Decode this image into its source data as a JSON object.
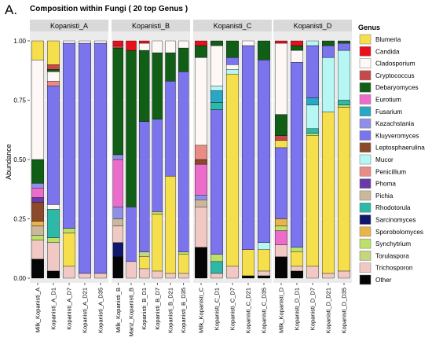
{
  "figure": {
    "panel_letter": "A.",
    "title": "Composition within Fungi ( 20 top Genus )"
  },
  "colors": {
    "Blumeria": "#f5df4d",
    "Candida": "#e8101c",
    "Cladosporium": "#fdf8f5",
    "Cryptococcus": "#c8474b",
    "Debaryomyces": "#115e16",
    "Eurotium": "#ec6ccc",
    "Fusarium": "#2aa6c6",
    "Kazachstania": "#8f8fe8",
    "Kluyveromyces": "#7b74ec",
    "Leptosphaerulina": "#8b4a2b",
    "Mucor": "#b6f7f4",
    "Penicillium": "#ea8c86",
    "Phoma": "#6b3aa9",
    "Pichia": "#c9b89c",
    "Rhodotorula": "#2db8a8",
    "Sarcinomyces": "#10186e",
    "Sporobolomyces": "#e8b54a",
    "Synchytrium": "#bce06a",
    "Torulaspora": "#c5d67e",
    "Trichosporon": "#f1c9c4",
    "Other": "#050505"
  },
  "chart_data": {
    "type": "bar",
    "stacked": true,
    "title": "Composition within Fungi ( 20 top Genus )",
    "xlabel": "",
    "ylabel": "Abundance",
    "ylim": [
      0,
      1
    ],
    "yticks": [
      "0.00",
      "0.25",
      "0.50",
      "0.75",
      "1.00"
    ],
    "grid": true,
    "legend_position": "right",
    "legend_title": "Genus",
    "legend": [
      "Blumeria",
      "Candida",
      "Cladosporium",
      "Cryptococcus",
      "Debaryomyces",
      "Eurotium",
      "Fusarium",
      "Kazachstania",
      "Kluyveromyces",
      "Leptosphaerulina",
      "Mucor",
      "Penicillium",
      "Phoma",
      "Pichia",
      "Rhodotorula",
      "Sarcinomyces",
      "Sporobolomyces",
      "Synchytrium",
      "Torulaspora",
      "Trichosporon",
      "Other"
    ],
    "facets": [
      {
        "name": "Kopanisti_A",
        "samples": [
          {
            "label": "Milk_Kopanisti_A",
            "stack": [
              {
                "genus": "Other",
                "value": 0.08
              },
              {
                "genus": "Trichosporon",
                "value": 0.08
              },
              {
                "genus": "Synchytrium",
                "value": 0.02
              },
              {
                "genus": "Pichia",
                "value": 0.04
              },
              {
                "genus": "Sporobolomyces",
                "value": 0.02
              },
              {
                "genus": "Leptosphaerulina",
                "value": 0.08
              },
              {
                "genus": "Phoma",
                "value": 0.02
              },
              {
                "genus": "Eurotium",
                "value": 0.04
              },
              {
                "genus": "Kazachstania",
                "value": 0.02
              },
              {
                "genus": "Debaryomyces",
                "value": 0.1
              },
              {
                "genus": "Cladosporium",
                "value": 0.42
              },
              {
                "genus": "Blumeria",
                "value": 0.08
              }
            ]
          },
          {
            "label": "Kopanisti_A_D1",
            "stack": [
              {
                "genus": "Other",
                "value": 0.03
              },
              {
                "genus": "Trichosporon",
                "value": 0.12
              },
              {
                "genus": "Synchytrium",
                "value": 0.02
              },
              {
                "genus": "Rhodotorula",
                "value": 0.12
              },
              {
                "genus": "Cladosporium",
                "value": 0.02
              },
              {
                "genus": "Kluyveromyces",
                "value": 0.5
              },
              {
                "genus": "Penicillium",
                "value": 0.02
              },
              {
                "genus": "Cladosporium",
                "value": 0.04
              },
              {
                "genus": "Debaryomyces",
                "value": 0.01
              },
              {
                "genus": "Cryptococcus",
                "value": 0.02
              },
              {
                "genus": "Blumeria",
                "value": 0.1
              }
            ]
          },
          {
            "label": "Kopanisti_A_D7",
            "stack": [
              {
                "genus": "Trichosporon",
                "value": 0.05
              },
              {
                "genus": "Blumeria",
                "value": 0.14
              },
              {
                "genus": "Synchytrium",
                "value": 0.02
              },
              {
                "genus": "Kluyveromyces",
                "value": 0.78
              },
              {
                "genus": "Cladosporium",
                "value": 0.01
              }
            ]
          },
          {
            "label": "Kopanisti_A_D21",
            "stack": [
              {
                "genus": "Trichosporon",
                "value": 0.02
              },
              {
                "genus": "Kluyveromyces",
                "value": 0.97
              },
              {
                "genus": "Cladosporium",
                "value": 0.01
              }
            ]
          },
          {
            "label": "Kopanisti_A_D35",
            "stack": [
              {
                "genus": "Trichosporon",
                "value": 0.02
              },
              {
                "genus": "Kluyveromyces",
                "value": 0.97
              },
              {
                "genus": "Cladosporium",
                "value": 0.01
              }
            ]
          }
        ]
      },
      {
        "name": "Kopanisti_B",
        "samples": [
          {
            "label": "Milk_Kopanisti_B",
            "stack": [
              {
                "genus": "Other",
                "value": 0.09
              },
              {
                "genus": "Sarcinomyces",
                "value": 0.06
              },
              {
                "genus": "Trichosporon",
                "value": 0.07
              },
              {
                "genus": "Pichia",
                "value": 0.03
              },
              {
                "genus": "Kazachstania",
                "value": 0.05
              },
              {
                "genus": "Eurotium",
                "value": 0.2
              },
              {
                "genus": "Kazachstania",
                "value": 0.02
              },
              {
                "genus": "Debaryomyces",
                "value": 0.45
              },
              {
                "genus": "Cryptococcus",
                "value": 0.01
              },
              {
                "genus": "Candida",
                "value": 0.02
              }
            ]
          },
          {
            "label": "Manz_Kopanisti_B",
            "stack": [
              {
                "genus": "Trichosporon",
                "value": 0.07
              },
              {
                "genus": "Kluyveromyces",
                "value": 0.23
              },
              {
                "genus": "Debaryomyces",
                "value": 0.66
              },
              {
                "genus": "Candida",
                "value": 0.04
              }
            ]
          },
          {
            "label": "Kopanisti_B_D1",
            "stack": [
              {
                "genus": "Trichosporon",
                "value": 0.04
              },
              {
                "genus": "Blumeria",
                "value": 0.05
              },
              {
                "genus": "Torulaspora",
                "value": 0.02
              },
              {
                "genus": "Kluyveromyces",
                "value": 0.55
              },
              {
                "genus": "Debaryomyces",
                "value": 0.3
              },
              {
                "genus": "Cladosporium",
                "value": 0.03
              },
              {
                "genus": "Candida",
                "value": 0.01
              }
            ]
          },
          {
            "label": "Kopanisti_B_D7",
            "stack": [
              {
                "genus": "Trichosporon",
                "value": 0.03
              },
              {
                "genus": "Blumeria",
                "value": 0.24
              },
              {
                "genus": "Synchytrium",
                "value": 0.01
              },
              {
                "genus": "Kluyveromyces",
                "value": 0.39
              },
              {
                "genus": "Debaryomyces",
                "value": 0.28
              },
              {
                "genus": "Cladosporium",
                "value": 0.05
              }
            ]
          },
          {
            "label": "Kopanisti_B_D21",
            "stack": [
              {
                "genus": "Trichosporon",
                "value": 0.02
              },
              {
                "genus": "Blumeria",
                "value": 0.41
              },
              {
                "genus": "Kluyveromyces",
                "value": 0.4
              },
              {
                "genus": "Debaryomyces",
                "value": 0.12
              },
              {
                "genus": "Cladosporium",
                "value": 0.05
              }
            ]
          },
          {
            "label": "Kopanisti_B_D35",
            "stack": [
              {
                "genus": "Trichosporon",
                "value": 0.02
              },
              {
                "genus": "Blumeria",
                "value": 0.08
              },
              {
                "genus": "Synchytrium",
                "value": 0.01
              },
              {
                "genus": "Kluyveromyces",
                "value": 0.76
              },
              {
                "genus": "Debaryomyces",
                "value": 0.1
              },
              {
                "genus": "Cladosporium",
                "value": 0.03
              }
            ]
          }
        ]
      },
      {
        "name": "Kopanisti_C",
        "samples": [
          {
            "label": "Milk_Kopanisti_C",
            "stack": [
              {
                "genus": "Other",
                "value": 0.13
              },
              {
                "genus": "Trichosporon",
                "value": 0.17
              },
              {
                "genus": "Pichia",
                "value": 0.03
              },
              {
                "genus": "Kazachstania",
                "value": 0.02
              },
              {
                "genus": "Eurotium",
                "value": 0.13
              },
              {
                "genus": "Leptosphaerulina",
                "value": 0.02
              },
              {
                "genus": "Penicillium",
                "value": 0.06
              },
              {
                "genus": "Cladosporium",
                "value": 0.37
              },
              {
                "genus": "Debaryomyces",
                "value": 0.05
              },
              {
                "genus": "Candida",
                "value": 0.02
              }
            ]
          },
          {
            "label": "Kopanisti_C_D1",
            "stack": [
              {
                "genus": "Trichosporon",
                "value": 0.02
              },
              {
                "genus": "Rhodotorula",
                "value": 0.05
              },
              {
                "genus": "Synchytrium",
                "value": 0.03
              },
              {
                "genus": "Kluyveromyces",
                "value": 0.61
              },
              {
                "genus": "Rhodotorula",
                "value": 0.03
              },
              {
                "genus": "Fusarium",
                "value": 0.05
              },
              {
                "genus": "Mucor",
                "value": 0.02
              },
              {
                "genus": "Cladosporium",
                "value": 0.17
              },
              {
                "genus": "Debaryomyces",
                "value": 0.02
              }
            ]
          },
          {
            "label": "Kopanisti_C_D7",
            "stack": [
              {
                "genus": "Trichosporon",
                "value": 0.05
              },
              {
                "genus": "Blumeria",
                "value": 0.81
              },
              {
                "genus": "Mucor",
                "value": 0.02
              },
              {
                "genus": "Cladosporium",
                "value": 0.02
              },
              {
                "genus": "Kluyveromyces",
                "value": 0.03
              },
              {
                "genus": "Debaryomyces",
                "value": 0.07
              }
            ]
          },
          {
            "label": "Kopanisti_C_D21",
            "stack": [
              {
                "genus": "Other",
                "value": 0.01
              },
              {
                "genus": "Blumeria",
                "value": 0.11
              },
              {
                "genus": "Kluyveromyces",
                "value": 0.86
              },
              {
                "genus": "Cladosporium",
                "value": 0.02
              }
            ]
          },
          {
            "label": "Kopanisti_C_D35",
            "stack": [
              {
                "genus": "Other",
                "value": 0.01
              },
              {
                "genus": "Trichosporon",
                "value": 0.02
              },
              {
                "genus": "Blumeria",
                "value": 0.09
              },
              {
                "genus": "Mucor",
                "value": 0.03
              },
              {
                "genus": "Kluyveromyces",
                "value": 0.77
              },
              {
                "genus": "Debaryomyces",
                "value": 0.08
              }
            ]
          }
        ]
      },
      {
        "name": "Kopanisti_D",
        "samples": [
          {
            "label": "Milk_Kopanisti_D",
            "stack": [
              {
                "genus": "Other",
                "value": 0.09
              },
              {
                "genus": "Trichosporon",
                "value": 0.05
              },
              {
                "genus": "Eurotium",
                "value": 0.06
              },
              {
                "genus": "Synchytrium",
                "value": 0.02
              },
              {
                "genus": "Sporobolomyces",
                "value": 0.03
              },
              {
                "genus": "Kluyveromyces",
                "value": 0.3
              },
              {
                "genus": "Blumeria",
                "value": 0.03
              },
              {
                "genus": "Cryptococcus",
                "value": 0.02
              },
              {
                "genus": "Debaryomyces",
                "value": 0.09
              },
              {
                "genus": "Cladosporium",
                "value": 0.3
              },
              {
                "genus": "Candida",
                "value": 0.01
              }
            ]
          },
          {
            "label": "Kopanisti_D_D1",
            "stack": [
              {
                "genus": "Other",
                "value": 0.03
              },
              {
                "genus": "Trichosporon",
                "value": 0.02
              },
              {
                "genus": "Blumeria",
                "value": 0.06
              },
              {
                "genus": "Synchytrium",
                "value": 0.02
              },
              {
                "genus": "Kluyveromyces",
                "value": 0.78
              },
              {
                "genus": "Cladosporium",
                "value": 0.05
              },
              {
                "genus": "Debaryomyces",
                "value": 0.02
              },
              {
                "genus": "Candida",
                "value": 0.02
              }
            ]
          },
          {
            "label": "Kopanisti_D_D7",
            "stack": [
              {
                "genus": "Trichosporon",
                "value": 0.05
              },
              {
                "genus": "Blumeria",
                "value": 0.55
              },
              {
                "genus": "Synchytrium",
                "value": 0.01
              },
              {
                "genus": "Rhodotorula",
                "value": 0.02
              },
              {
                "genus": "Mucor",
                "value": 0.1
              },
              {
                "genus": "Fusarium",
                "value": 0.03
              },
              {
                "genus": "Kluyveromyces",
                "value": 0.22
              },
              {
                "genus": "Mucor",
                "value": 0.02
              }
            ]
          },
          {
            "label": "Kopanisti_D_D21",
            "stack": [
              {
                "genus": "Trichosporon",
                "value": 0.02
              },
              {
                "genus": "Blumeria",
                "value": 0.68
              },
              {
                "genus": "Mucor",
                "value": 0.23
              },
              {
                "genus": "Kluyveromyces",
                "value": 0.05
              },
              {
                "genus": "Debaryomyces",
                "value": 0.02
              }
            ]
          },
          {
            "label": "Kopanisti_D_D35",
            "stack": [
              {
                "genus": "Trichosporon",
                "value": 0.03
              },
              {
                "genus": "Blumeria",
                "value": 0.69
              },
              {
                "genus": "Synchytrium",
                "value": 0.01
              },
              {
                "genus": "Rhodotorula",
                "value": 0.02
              },
              {
                "genus": "Mucor",
                "value": 0.21
              },
              {
                "genus": "Kluyveromyces",
                "value": 0.03
              },
              {
                "genus": "Debaryomyces",
                "value": 0.01
              }
            ]
          }
        ]
      }
    ]
  }
}
